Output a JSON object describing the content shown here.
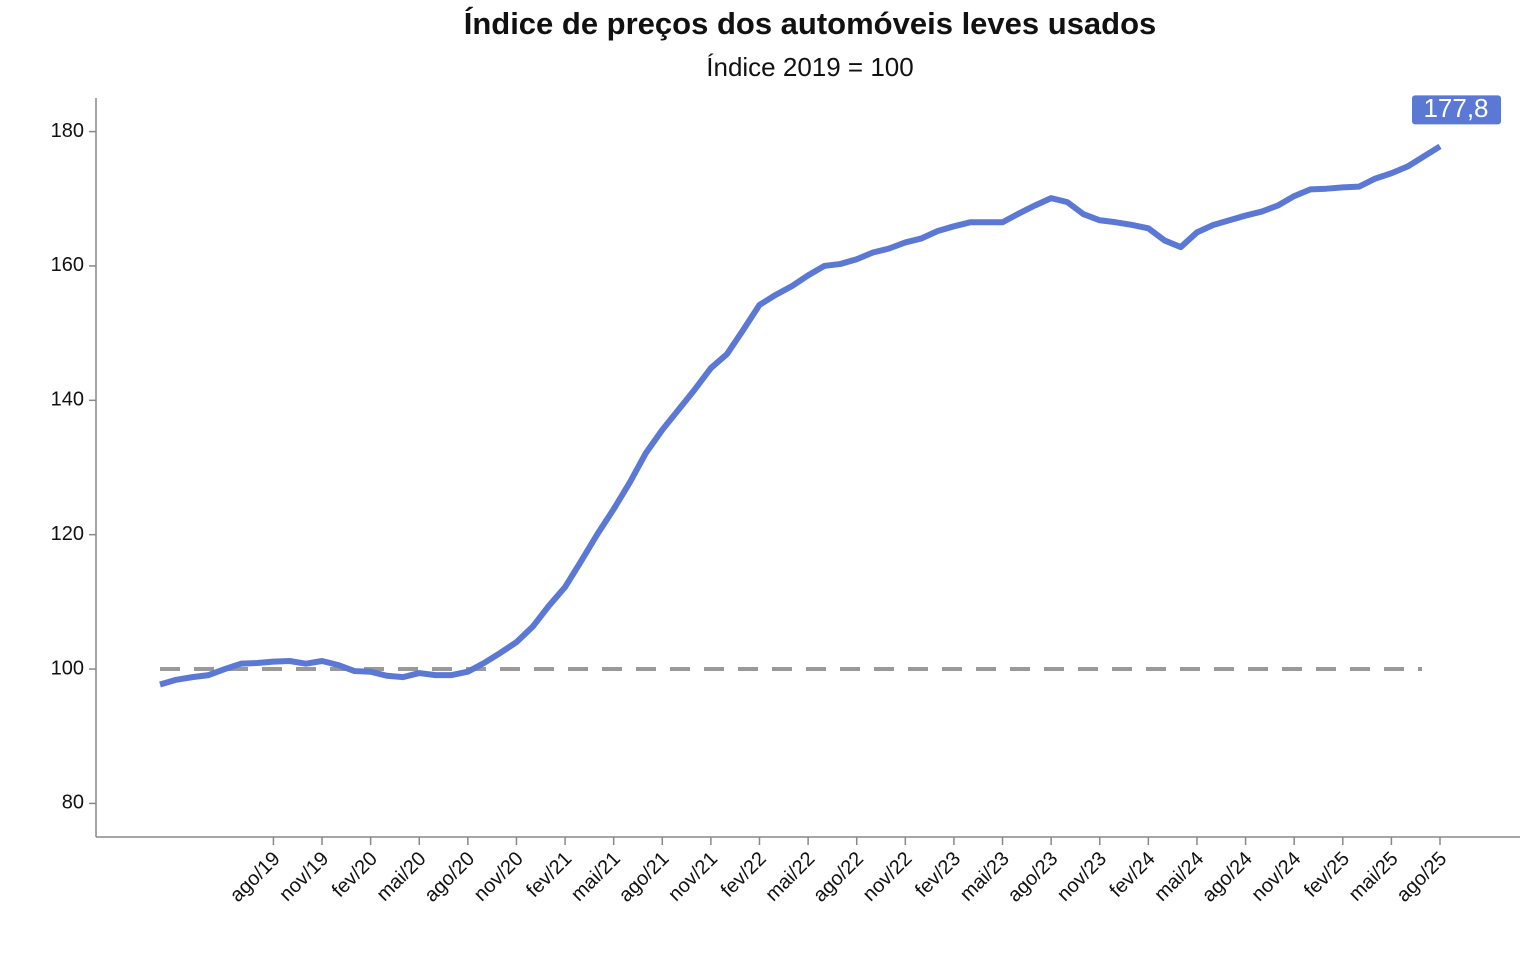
{
  "chart_data": {
    "type": "line",
    "title": "Índice de preços dos automóveis leves usados",
    "subtitle": "Índice 2019 = 100",
    "categories": [
      null,
      null,
      null,
      null,
      null,
      null,
      null,
      "ago/19",
      null,
      null,
      "nov/19",
      null,
      null,
      "fev/20",
      null,
      null,
      "mai/20",
      null,
      null,
      "ago/20",
      null,
      null,
      "nov/20",
      null,
      null,
      "fev/21",
      null,
      null,
      "mai/21",
      null,
      null,
      "ago/21",
      null,
      null,
      "nov/21",
      null,
      null,
      "fev/22",
      null,
      null,
      "mai/22",
      null,
      null,
      "ago/22",
      null,
      null,
      "nov/22",
      null,
      null,
      "fev/23",
      null,
      null,
      "mai/23",
      null,
      null,
      "ago/23",
      null,
      null,
      "nov/23",
      null,
      null,
      "fev/24",
      null,
      null,
      "mai/24",
      null,
      null,
      "ago/24",
      null,
      null,
      "nov/24",
      null,
      null,
      "fev/25",
      null,
      null,
      "mai/25",
      null,
      null,
      "ago/25"
    ],
    "series": [
      {
        "name": "Índice",
        "color": "#5b79d4",
        "values": [
          97.7,
          98.4,
          98.8,
          99.1,
          100.0,
          100.8,
          100.9,
          101.1,
          101.2,
          100.8,
          101.2,
          100.6,
          99.7,
          99.6,
          99.0,
          98.8,
          99.4,
          99.1,
          99.1,
          99.6,
          100.9,
          102.4,
          104.0,
          106.3,
          109.4,
          112.2,
          116.1,
          120.1,
          123.8,
          127.8,
          132.2,
          135.6,
          138.6,
          141.6,
          144.8,
          146.9,
          150.5,
          154.2,
          155.7,
          157.0,
          158.6,
          160.0,
          160.3,
          161.0,
          162.0,
          162.6,
          163.5,
          164.1,
          165.2,
          165.9,
          166.5,
          166.5,
          166.5,
          167.8,
          169.0,
          170.1,
          169.5,
          167.7,
          166.8,
          166.5,
          166.1,
          165.6,
          163.8,
          162.8,
          165.0,
          166.1,
          166.8,
          167.5,
          168.1,
          169.0,
          170.4,
          171.4,
          171.5,
          171.7,
          171.8,
          173.0,
          173.8,
          174.8,
          176.3,
          177.8
        ],
        "value_labels": [
          null,
          null,
          null,
          null,
          null,
          null,
          null,
          null,
          null,
          null,
          null,
          null,
          null,
          null,
          null,
          null,
          null,
          null,
          null,
          null,
          null,
          null,
          null,
          null,
          null,
          null,
          null,
          null,
          null,
          null,
          null,
          null,
          null,
          null,
          null,
          null,
          null,
          null,
          null,
          null,
          null,
          null,
          null,
          null,
          null,
          null,
          null,
          null,
          null,
          null,
          null,
          null,
          null,
          null,
          null,
          null,
          null,
          null,
          null,
          null,
          null,
          null,
          null,
          null,
          null,
          null,
          null,
          null,
          null,
          null,
          null,
          null,
          null,
          null,
          null,
          null,
          null,
          null,
          null,
          "177,8"
        ]
      }
    ],
    "reference_line": {
      "value": 100,
      "color": "#999999"
    },
    "ylim": [
      75,
      185
    ],
    "yticks": [
      80,
      100,
      120,
      140,
      160,
      180
    ],
    "grid": false
  }
}
